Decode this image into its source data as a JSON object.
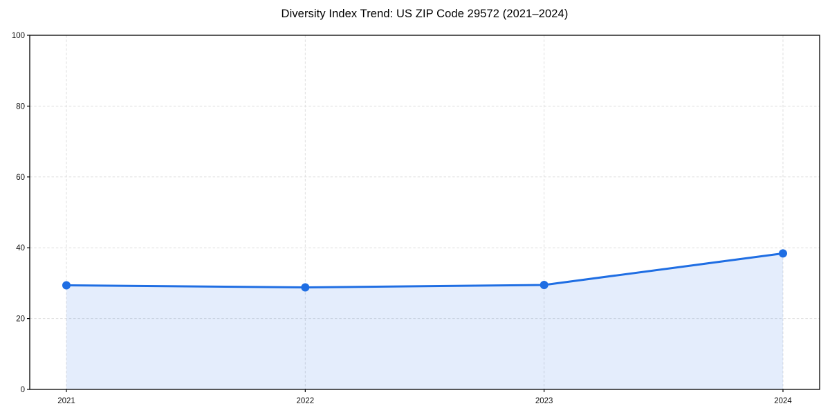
{
  "chart_data": {
    "type": "area",
    "title": "Diversity Index Trend: US ZIP Code 29572 (2021–2024)",
    "categories": [
      "2021",
      "2022",
      "2023",
      "2024"
    ],
    "values": [
      29.4,
      28.8,
      29.5,
      38.4
    ],
    "series_name": "Diversity Index",
    "xlabel": "",
    "ylabel": "",
    "ylim": [
      0,
      100
    ],
    "yticks": [
      0,
      20,
      40,
      60,
      80,
      100
    ],
    "grid": true,
    "grid_style": "dashed",
    "legend": false,
    "marker": "circle",
    "fill_opacity": 0.12,
    "colors": {
      "line": "#1f6ee3",
      "marker": "#1f6ee3",
      "fill_base": "#1f6ee3",
      "grid": "#dedede",
      "axis": "#000000",
      "text": "#111111",
      "background": "#ffffff"
    }
  }
}
